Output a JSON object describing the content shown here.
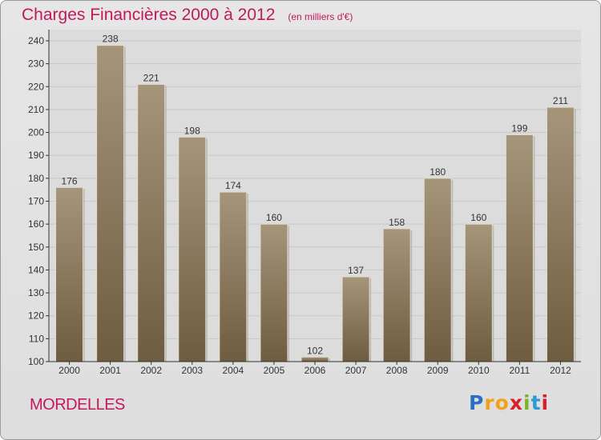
{
  "title": "Charges Financières 2000 à 2012",
  "unit_label": "(en milliers d'€)",
  "location": "MORDELLES",
  "brand": {
    "letters": [
      "P",
      "r",
      "o",
      "x",
      "i",
      "t",
      "i"
    ],
    "colors": [
      "#2a6fc0",
      "#f3a11b",
      "#f3a11b",
      "#d8202a",
      "#79b52b",
      "#2a9bd6",
      "#d8202a"
    ]
  },
  "colors": {
    "accent": "#c2195b",
    "bar_top": "#a5957a",
    "bar_bottom": "#6e5c40",
    "grid": "#c8c8c8",
    "axis": "#333333"
  },
  "chart_data": {
    "type": "bar",
    "title": "Charges Financières 2000 à 2012",
    "subtitle": "(en milliers d'€)",
    "xlabel": "",
    "ylabel": "",
    "categories": [
      "2000",
      "2001",
      "2002",
      "2003",
      "2004",
      "2005",
      "2006",
      "2007",
      "2008",
      "2009",
      "2010",
      "2011",
      "2012"
    ],
    "values": [
      176,
      238,
      221,
      198,
      174,
      160,
      102,
      137,
      158,
      180,
      160,
      199,
      211
    ],
    "ylim": [
      100,
      240
    ],
    "yticks": [
      100,
      110,
      120,
      130,
      140,
      150,
      160,
      170,
      180,
      190,
      200,
      210,
      220,
      230,
      240
    ],
    "grid": true,
    "data_labels": true
  }
}
